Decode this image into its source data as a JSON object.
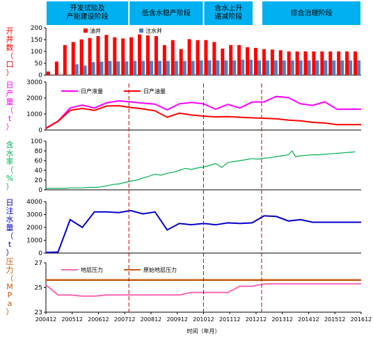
{
  "phases": [
    {
      "label_lines": [
        "开发试验及",
        "产能建设阶段"
      ],
      "x0": 0,
      "x1": 9,
      "color": "#00b0f0"
    },
    {
      "label_lines": [
        "低含水稳产阶段"
      ],
      "x0": 10,
      "x1": 18,
      "color": "#00b0f0"
    },
    {
      "label_lines": [
        "含水上升",
        "递减阶段"
      ],
      "x0": 19,
      "x1": 24,
      "color": "#00b0f0"
    },
    {
      "label_lines": [
        "综合治理阶段"
      ],
      "x0": 26,
      "x1": 37,
      "color": "#00b0f0"
    }
  ],
  "xaxis": {
    "ticks": [
      "200412",
      "200512",
      "200612",
      "200712",
      "200812",
      "200912",
      "201012",
      "201112",
      "201212",
      "201312",
      "201412",
      "201512",
      "201612"
    ],
    "label": "时间（年月）"
  },
  "dividers_at": [
    9.5,
    18.5,
    25.5
  ],
  "chart_data": [
    {
      "type": "bar",
      "ylabel": "开井数（口）",
      "ylim": [
        0,
        200
      ],
      "yticks": [
        0,
        50,
        100,
        150,
        200
      ],
      "legend": "top-center",
      "series": [
        {
          "name": "油井",
          "color": "#ff0000",
          "values": [
            15,
            57,
            127,
            140,
            151,
            157,
            165,
            170,
            160,
            155,
            160,
            172,
            168,
            165,
            127,
            148,
            110,
            152,
            148,
            148,
            140,
            112,
            127,
            127,
            118,
            115,
            110,
            108,
            105,
            100,
            100,
            100,
            100,
            100,
            100,
            100,
            100,
            100
          ]
        },
        {
          "name": "注水井",
          "color": "#4f81bd",
          "values": [
            0,
            0,
            0,
            46,
            40,
            55,
            57,
            60,
            58,
            58,
            60,
            60,
            60,
            60,
            60,
            60,
            60,
            60,
            62,
            62,
            62,
            62,
            62,
            65,
            65,
            62,
            62,
            62,
            62,
            62,
            62,
            62,
            62,
            62,
            62,
            62,
            62,
            62
          ]
        }
      ]
    },
    {
      "type": "line",
      "ylabel": "日产量（t）",
      "ylim": [
        0,
        3000
      ],
      "yticks": [
        0,
        1000,
        2000,
        3000
      ],
      "legend": "top",
      "series": [
        {
          "name": "日产液量",
          "color": "#ff00ff",
          "width": 2,
          "x": [
            0,
            1,
            2,
            3,
            4,
            5,
            6,
            7,
            8,
            9,
            10,
            11,
            12,
            13,
            14,
            15,
            16,
            17,
            18,
            19,
            20,
            21,
            22,
            23,
            24,
            25,
            26
          ],
          "values": [
            120,
            560,
            1380,
            1560,
            1380,
            1700,
            1820,
            1760,
            1680,
            1620,
            1260,
            1640,
            1720,
            1640,
            1300,
            1600,
            1380,
            1750,
            1760,
            2100,
            2020,
            1640,
            1540,
            1760,
            1300,
            1300,
            1300
          ]
        },
        {
          "name": "日产油量",
          "color": "#ff0000",
          "width": 2,
          "x": [
            0,
            1,
            2,
            3,
            4,
            5,
            6,
            7,
            8,
            9,
            10,
            11,
            12,
            13,
            14,
            15,
            16,
            17,
            18,
            19,
            20,
            21,
            22,
            23,
            24,
            25,
            26
          ],
          "values": [
            100,
            540,
            1230,
            1350,
            1230,
            1500,
            1520,
            1410,
            1320,
            1200,
            800,
            1050,
            940,
            870,
            820,
            840,
            800,
            760,
            740,
            700,
            620,
            580,
            480,
            440,
            340,
            340,
            340
          ]
        }
      ]
    },
    {
      "type": "line",
      "ylabel": "含水率（%）",
      "ylim": [
        0,
        100
      ],
      "yticks": [
        0,
        20,
        40,
        60,
        80,
        100
      ],
      "series": [
        {
          "name": "含水率",
          "color": "#00b050",
          "width": 1.2,
          "x": [
            0,
            0.5,
            1,
            1.5,
            2,
            2.5,
            3,
            3.5,
            4,
            4.5,
            5,
            5.5,
            6,
            6.5,
            7,
            7.5,
            8,
            8.5,
            9,
            9.5,
            10,
            10.5,
            11,
            11.5,
            12,
            12.5,
            13,
            13.5,
            14,
            14.5,
            15,
            15.5,
            16,
            16.5,
            17,
            17.5,
            18,
            18.5,
            19,
            19.5,
            20,
            20.3,
            20.6,
            21,
            21.5,
            22,
            22.5,
            23,
            23.5,
            24,
            24.5,
            25,
            25.5
          ],
          "values": [
            3,
            3,
            3,
            3,
            4,
            4,
            4,
            5,
            5,
            6,
            8,
            11,
            12,
            15,
            18,
            20,
            24,
            28,
            32,
            30,
            34,
            36,
            40,
            44,
            42,
            45,
            47,
            50,
            54,
            46,
            56,
            58,
            60,
            62,
            64,
            63,
            65,
            66,
            68,
            70,
            72,
            80,
            68,
            70,
            71,
            72,
            72,
            73,
            74,
            75,
            76,
            77,
            78
          ]
        }
      ]
    },
    {
      "type": "line",
      "ylabel": "日注水量（t）",
      "ylim": [
        0,
        4000
      ],
      "yticks": [
        0,
        1000,
        2000,
        3000,
        4000
      ],
      "series": [
        {
          "name": "日注水量",
          "color": "#0000cc",
          "width": 2,
          "x": [
            0,
            1,
            2,
            3,
            4,
            5,
            6,
            7,
            8,
            9,
            10,
            11,
            12,
            13,
            14,
            15,
            16,
            17,
            18,
            19,
            20,
            21,
            22,
            23,
            24,
            25,
            26
          ],
          "values": [
            50,
            80,
            2600,
            2000,
            3200,
            3200,
            3150,
            3300,
            3050,
            3200,
            1800,
            2300,
            2200,
            2300,
            2200,
            2350,
            2300,
            2350,
            2900,
            2850,
            2500,
            2600,
            2400,
            2400,
            2400,
            2400,
            2400
          ]
        }
      ]
    },
    {
      "type": "line",
      "ylabel": "压力（MPa）",
      "ylim": [
        23,
        27
      ],
      "yticks": [
        23,
        25,
        27
      ],
      "legend": "top",
      "series": [
        {
          "name": "地层压力",
          "color": "#ff66b3",
          "width": 2,
          "x": [
            0,
            1,
            2,
            3,
            4,
            5,
            6,
            7,
            8,
            9,
            10,
            11,
            12,
            13,
            14,
            15,
            16,
            17,
            18,
            19,
            20,
            21,
            22,
            23,
            24,
            25,
            26
          ],
          "values": [
            25.2,
            24.4,
            24.4,
            24.3,
            24.3,
            24.4,
            24.4,
            24.4,
            24.4,
            24.4,
            24.4,
            24.4,
            24.6,
            24.6,
            24.6,
            24.6,
            25.1,
            25.1,
            25.3,
            25.3,
            25.3,
            25.3,
            25.3,
            25.3,
            25.3,
            25.3,
            25.3
          ]
        },
        {
          "name": "原始地层压力",
          "color": "#c55a11",
          "width": 2.5,
          "x": [
            0,
            26
          ],
          "values": [
            25.6,
            25.6
          ]
        }
      ]
    }
  ]
}
